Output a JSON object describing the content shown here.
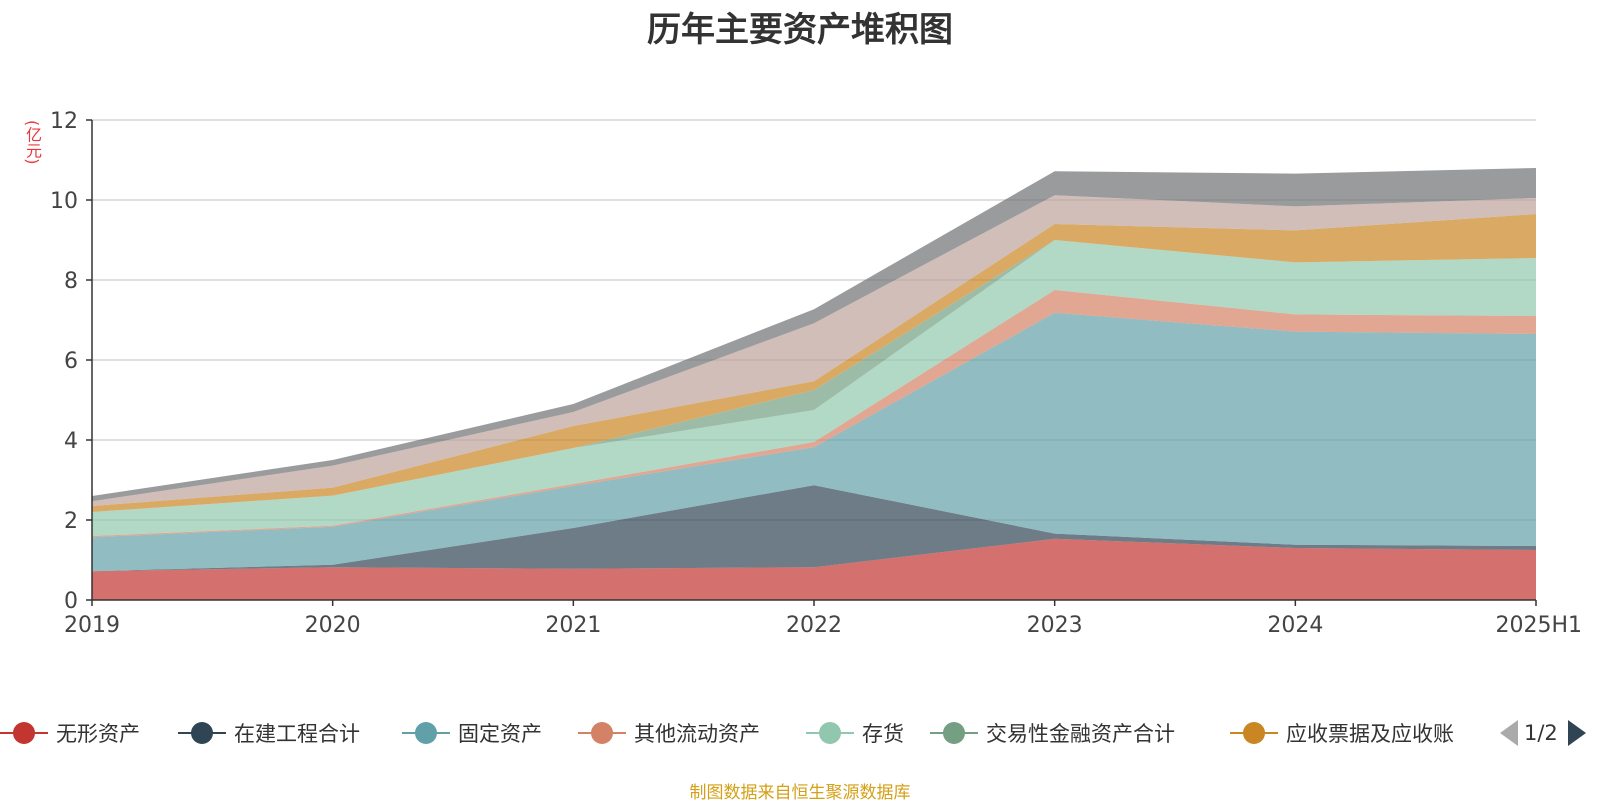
{
  "page": {
    "title": "历年主要资产堆积图",
    "unit": "(亿元)",
    "source": "制图数据来自恒生聚源数据库",
    "pager": "1/2"
  },
  "chart_data": {
    "type": "area",
    "stacked": true,
    "title": "历年主要资产堆积图",
    "ylabel": "(亿元)",
    "categories": [
      "2019",
      "2020",
      "2021",
      "2022",
      "2023",
      "2024",
      "2025H1"
    ],
    "ylim": [
      0,
      12
    ],
    "yticks": [
      0,
      2,
      4,
      6,
      8,
      10,
      12
    ],
    "grid": true,
    "legend_position": "bottom",
    "series": [
      {
        "name": "无形资产",
        "color": "#c23531",
        "values": [
          0.72,
          0.82,
          0.78,
          0.82,
          1.53,
          1.3,
          1.25
        ]
      },
      {
        "name": "在建工程合计",
        "color": "#2f4554",
        "values": [
          0.0,
          0.06,
          1.02,
          2.05,
          0.13,
          0.08,
          0.1
        ]
      },
      {
        "name": "固定资产",
        "color": "#61a0a8",
        "values": [
          0.85,
          0.95,
          1.05,
          0.95,
          5.52,
          5.33,
          5.3
        ]
      },
      {
        "name": "其他流动资产",
        "color": "#d48265",
        "values": [
          0.03,
          0.03,
          0.05,
          0.13,
          0.57,
          0.43,
          0.45
        ]
      },
      {
        "name": "存货",
        "color": "#91c7ae",
        "values": [
          0.6,
          0.75,
          0.9,
          0.8,
          1.25,
          1.3,
          1.45
        ]
      },
      {
        "name": "交易性金融资产合计",
        "color": "#749f83",
        "values": [
          0.0,
          0.0,
          0.0,
          0.5,
          0.0,
          0.0,
          0.0
        ]
      },
      {
        "name": "应收票据及应收账",
        "color": "#ca8622",
        "values": [
          0.15,
          0.2,
          0.55,
          0.22,
          0.4,
          0.8,
          1.1
        ]
      },
      {
        "name": "",
        "color": "#bda29a",
        "values": [
          0.12,
          0.55,
          0.35,
          1.45,
          0.72,
          0.6,
          0.4
        ]
      },
      {
        "name": "",
        "color": "#6e7074",
        "values": [
          0.13,
          0.14,
          0.2,
          0.35,
          0.6,
          0.82,
          0.75
        ]
      }
    ]
  }
}
